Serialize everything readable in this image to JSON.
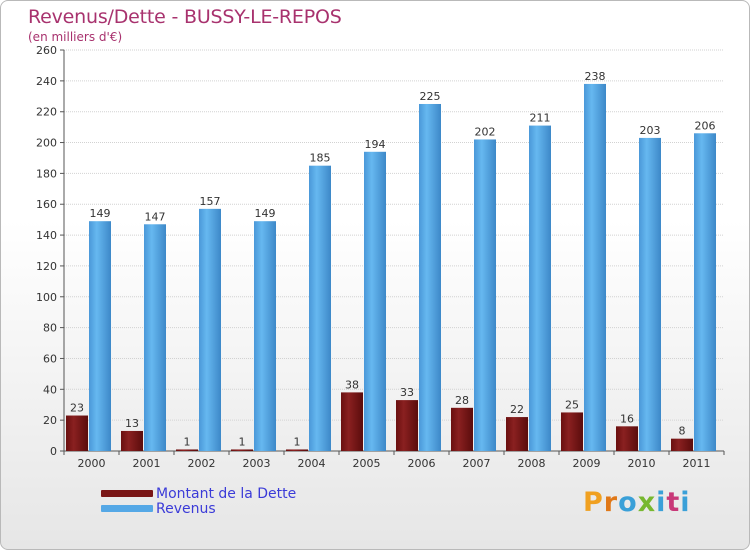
{
  "header": {
    "title": "Revenus/Dette - BUSSY-LE-REPOS",
    "subtitle": "(en milliers d'€)"
  },
  "colors": {
    "title": "#a8326e",
    "debt": "#7a1616",
    "revenue": "#55a8e6",
    "legend_text": "#3b3bd8"
  },
  "chart_data": {
    "type": "bar",
    "title": "Revenus/Dette - BUSSY-LE-REPOS",
    "ylabel": "(en milliers d'€)",
    "xlabel": "",
    "categories": [
      "2000",
      "2001",
      "2002",
      "2003",
      "2004",
      "2005",
      "2006",
      "2007",
      "2008",
      "2009",
      "2010",
      "2011"
    ],
    "series": [
      {
        "name": "Montant de la Dette",
        "values": [
          23,
          13,
          1,
          1,
          1,
          38,
          33,
          28,
          22,
          25,
          16,
          8
        ]
      },
      {
        "name": "Revenus",
        "values": [
          149,
          147,
          157,
          149,
          185,
          194,
          225,
          202,
          211,
          238,
          203,
          206
        ]
      }
    ],
    "ylim": [
      0,
      260
    ],
    "yticks": [
      0,
      20,
      40,
      60,
      80,
      100,
      120,
      140,
      160,
      180,
      200,
      220,
      240,
      260
    ],
    "grid": true,
    "legend": "bottom-left"
  },
  "legend": {
    "items": [
      {
        "label": "Montant de la Dette"
      },
      {
        "label": "Revenus"
      }
    ]
  },
  "logo": {
    "letters": [
      "P",
      "r",
      "o",
      "x",
      "i",
      "t",
      "i"
    ],
    "colors": [
      "#f0a020",
      "#e07818",
      "#3aa0d8",
      "#78b830",
      "#3aa0d8",
      "#c83878",
      "#3aa0d8"
    ]
  }
}
